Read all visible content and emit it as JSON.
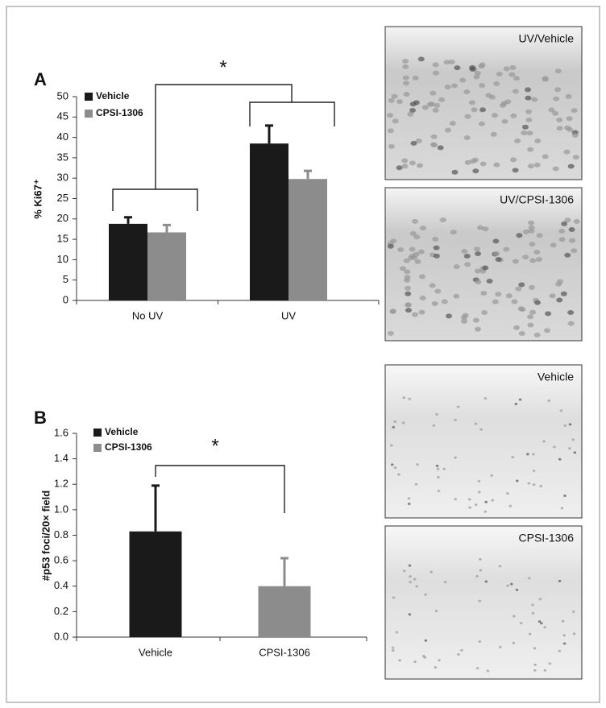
{
  "chart_data": [
    {
      "type": "bar",
      "panel": "A",
      "annotation": "*",
      "ylabel": "% Ki67⁺",
      "categories": [
        "No UV",
        "UV"
      ],
      "series": [
        {
          "name": "Vehicle",
          "color": "#1a1a1a",
          "values": [
            18.8,
            38.5
          ],
          "errors": [
            1.6,
            4.4
          ]
        },
        {
          "name": "CPSI-1306",
          "color": "#8c8c8c",
          "values": [
            16.7,
            29.8
          ],
          "errors": [
            1.8,
            2.0
          ]
        }
      ],
      "ylim": [
        0,
        50
      ],
      "yticks": [
        0,
        5,
        10,
        15,
        20,
        25,
        30,
        35,
        40,
        45,
        50
      ]
    },
    {
      "type": "bar",
      "panel": "B",
      "annotation": "*",
      "ylabel": "#p53 foci/20× field",
      "categories": [
        "Vehicle",
        "CPSI-1306"
      ],
      "series": [
        {
          "name": "Vehicle",
          "color": "#1a1a1a",
          "values": [
            0.83,
            null
          ],
          "errors": [
            0.36,
            null
          ]
        },
        {
          "name": "CPSI-1306",
          "color": "#8c8c8c",
          "values": [
            null,
            0.4
          ],
          "errors": [
            null,
            0.22
          ]
        }
      ],
      "ylim": [
        0,
        1.6
      ],
      "yticks": [
        {
          "value": 0,
          "label": "0.0"
        },
        0.2,
        0.4,
        0.6,
        0.8,
        {
          "value": 1,
          "label": "1.0"
        },
        1.2,
        1.4,
        1.6
      ]
    }
  ],
  "images": [
    {
      "label": "UV/Vehicle"
    },
    {
      "label": "UV/CPSI-1306"
    },
    {
      "label": "Vehicle"
    },
    {
      "label": "CPSI-1306"
    }
  ]
}
